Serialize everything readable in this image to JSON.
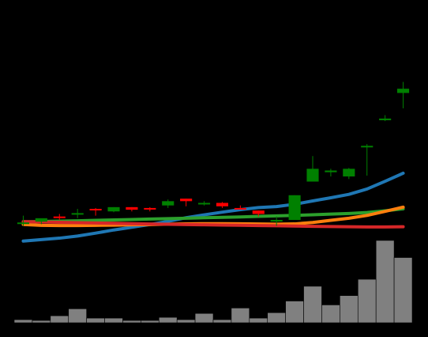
{
  "chart_data": {
    "type": "candlestick",
    "background": "#000000",
    "grid": false,
    "legend": "none",
    "colors": {
      "up": "#008000",
      "down": "#ff0000",
      "volume": "#808080",
      "volume_edge": "#000000"
    },
    "price_ylim": [
      -10,
      250
    ],
    "candles": [
      {
        "open": 0,
        "high": 8,
        "low": -4,
        "close": 0
      },
      {
        "open": 1,
        "high": 4,
        "low": -2,
        "close": 5
      },
      {
        "open": 7,
        "high": 10,
        "low": 3,
        "close": 6
      },
      {
        "open": 11,
        "high": 16,
        "low": 5,
        "close": 11
      },
      {
        "open": 16,
        "high": 17,
        "low": 8,
        "close": 15
      },
      {
        "open": 13,
        "high": 18,
        "low": 12,
        "close": 18
      },
      {
        "open": 18,
        "high": 18,
        "low": 13,
        "close": 15
      },
      {
        "open": 17,
        "high": 18,
        "low": 13,
        "close": 16
      },
      {
        "open": 20,
        "high": 27,
        "low": 17,
        "close": 25
      },
      {
        "open": 28,
        "high": 28,
        "low": 19,
        "close": 25
      },
      {
        "open": 23,
        "high": 25,
        "low": 20,
        "close": 23
      },
      {
        "open": 23,
        "high": 24,
        "low": 17,
        "close": 19
      },
      {
        "open": 17,
        "high": 20,
        "low": 15,
        "close": 16
      },
      {
        "open": 14,
        "high": 14,
        "low": 7,
        "close": 10
      },
      {
        "open": 2,
        "high": 7,
        "low": -4,
        "close": 3
      },
      {
        "open": 3,
        "high": 32,
        "low": 3,
        "close": 32
      },
      {
        "open": 48,
        "high": 78,
        "low": 48,
        "close": 63
      },
      {
        "open": 59,
        "high": 63,
        "low": 54,
        "close": 61
      },
      {
        "open": 54,
        "high": 64,
        "low": 51,
        "close": 63
      },
      {
        "open": 90,
        "high": 92,
        "low": 55,
        "close": 90
      },
      {
        "open": 120,
        "high": 126,
        "low": 119,
        "close": 122
      },
      {
        "open": 152,
        "high": 165,
        "low": 134,
        "close": 157
      }
    ],
    "moving_averages": [
      {
        "color": "#1f77b4",
        "values": [
          -21.8,
          -20.1,
          -18.4,
          -15.9,
          -12.5,
          -8.8,
          -5.6,
          -2.4,
          1.3,
          5.6,
          9.0,
          12.1,
          15.1,
          17.5,
          18.7,
          21.4,
          25.3,
          29.0,
          33.0,
          39.3,
          48.3,
          57.8
        ]
      },
      {
        "color": "#2ca02c",
        "values": [
          0.8,
          1.2,
          1.6,
          2.0,
          2.5,
          3.0,
          3.5,
          4.0,
          4.5,
          5.0,
          5.5,
          6.0,
          6.5,
          7.2,
          7.8,
          8.3,
          9.0,
          9.8,
          10.6,
          11.7,
          13.7,
          16.0
        ]
      },
      {
        "color": "#ff7f0e",
        "values": [
          -2.3,
          -3.4,
          -3.6,
          -3.6,
          -3.4,
          -3.1,
          -2.7,
          -2.4,
          -2.0,
          -1.6,
          -1.4,
          -1.4,
          -1.5,
          -1.8,
          -2.0,
          -1.7,
          0.0,
          2.5,
          5.0,
          8.3,
          13.0,
          18.0
        ]
      },
      {
        "color": "#d62728",
        "values": [
          1.0,
          0.6,
          0.2,
          -0.2,
          -0.6,
          -1.0,
          -1.4,
          -1.8,
          -2.1,
          -2.4,
          -2.7,
          -3.0,
          -3.3,
          -3.6,
          -3.9,
          -4.2,
          -4.5,
          -4.8,
          -5.0,
          -5.2,
          -5.2,
          -5.0
        ]
      }
    ],
    "volume_ylim": [
      0,
      110
    ],
    "volume": [
      4,
      3,
      9,
      18,
      6,
      6,
      3,
      3,
      7,
      4,
      12,
      4,
      19,
      6,
      13,
      28,
      47,
      23,
      35,
      56,
      106,
      84
    ]
  }
}
